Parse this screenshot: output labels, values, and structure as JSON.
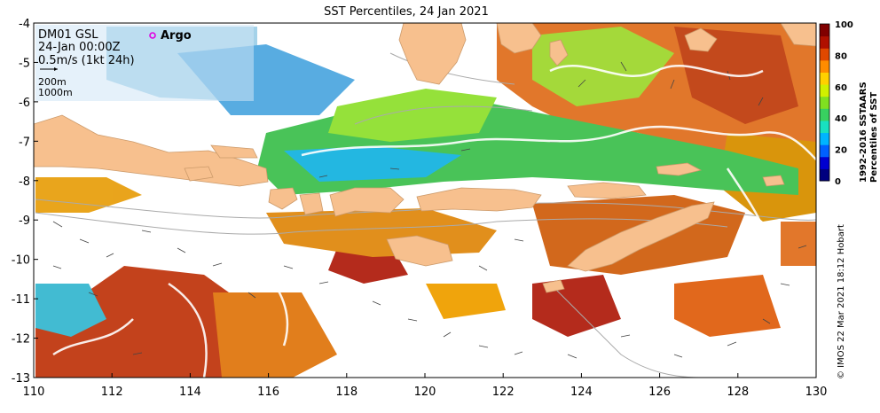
{
  "title": "SST Percentiles, 24 Jan 2021",
  "info": {
    "station": "DM01 GSL",
    "time": "24-Jan 00:00Z",
    "scale": "0.5m/s (1kt 24h)",
    "contour1": "200m",
    "contour2": "1000m",
    "argo_label": "Argo"
  },
  "colorbar": {
    "title_line1": "1992-2016 SSTAARS",
    "title_line2": "Percentiles of SST",
    "ticks": [
      "100",
      "80",
      "60",
      "40",
      "20",
      "0"
    ],
    "colors": [
      "#00007f",
      "#0000d0",
      "#0060ff",
      "#00b4ff",
      "#18e0c0",
      "#38d060",
      "#80e020",
      "#d0f000",
      "#ffd000",
      "#ff8c00",
      "#e04800",
      "#b01000",
      "#800000"
    ]
  },
  "credit": "© IMOS 22 Mar 2021 18:12 Hobart",
  "axes": {
    "x_ticks": [
      "110",
      "112",
      "114",
      "116",
      "118",
      "120",
      "122",
      "124",
      "126",
      "128",
      "130"
    ],
    "y_ticks": [
      "-4",
      "-5",
      "-6",
      "-7",
      "-8",
      "-9",
      "-10",
      "-11",
      "-12",
      "-13"
    ],
    "xlim": [
      110,
      130
    ],
    "ylim": [
      -13,
      -4
    ]
  },
  "map": {
    "land_color": "#f7c08e",
    "contour_color": "#aaaaaa",
    "no_data_color": "#ffffff"
  }
}
